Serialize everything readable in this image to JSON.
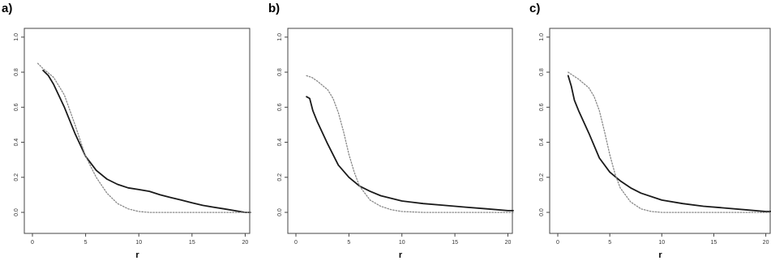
{
  "chart_data": [
    {
      "type": "line",
      "panel_label": "a)",
      "xlabel": "r",
      "ylabel": "",
      "xlim": [
        0,
        20.5
      ],
      "ylim": [
        -0.12,
        1.05
      ],
      "xticks": [
        "0",
        "5",
        "10",
        "15",
        "20"
      ],
      "yticks": [
        "0.0",
        "0.2",
        "0.4",
        "0.6",
        "0.8",
        "1.0"
      ],
      "grid": false,
      "series": [
        {
          "style": "solid",
          "color": "#1a1a1a",
          "x": [
            1,
            1.5,
            2,
            3,
            4,
            5,
            6,
            7,
            8,
            9,
            10,
            11,
            12,
            13,
            14,
            15,
            16,
            17,
            18,
            19,
            20,
            20.5
          ],
          "y": [
            0.81,
            0.78,
            0.73,
            0.6,
            0.45,
            0.32,
            0.24,
            0.19,
            0.16,
            0.14,
            0.13,
            0.12,
            0.1,
            0.085,
            0.07,
            0.055,
            0.04,
            0.03,
            0.02,
            0.01,
            0.0,
            0.0
          ]
        },
        {
          "style": "dotted",
          "color": "#888888",
          "x": [
            0.5,
            1,
            2,
            3,
            4,
            5,
            6,
            7,
            8,
            9,
            10,
            11,
            12,
            14,
            16,
            18,
            20,
            20.5
          ],
          "y": [
            0.85,
            0.82,
            0.77,
            0.67,
            0.5,
            0.32,
            0.2,
            0.11,
            0.05,
            0.02,
            0.005,
            0.0,
            0.0,
            0.0,
            0.0,
            0.0,
            0.0,
            0.0
          ]
        }
      ]
    },
    {
      "type": "line",
      "panel_label": "b)",
      "xlabel": "r",
      "ylabel": "",
      "xlim": [
        0,
        20.5
      ],
      "ylim": [
        -0.12,
        1.05
      ],
      "xticks": [
        "0",
        "5",
        "10",
        "15",
        "20"
      ],
      "yticks": [
        "0.0",
        "0.2",
        "0.4",
        "0.6",
        "0.8",
        "1.0"
      ],
      "grid": false,
      "series": [
        {
          "style": "solid",
          "color": "#1a1a1a",
          "x": [
            1,
            1.3,
            1.6,
            2,
            3,
            4,
            5,
            6,
            7,
            8,
            10,
            12,
            14,
            16,
            18,
            20,
            20.5
          ],
          "y": [
            0.66,
            0.65,
            0.58,
            0.52,
            0.39,
            0.27,
            0.2,
            0.15,
            0.12,
            0.095,
            0.065,
            0.05,
            0.04,
            0.03,
            0.02,
            0.01,
            0.01
          ]
        },
        {
          "style": "dotted",
          "color": "#888888",
          "x": [
            1,
            1.5,
            2,
            3,
            3.5,
            4,
            4.5,
            5,
            5.5,
            6,
            7,
            8,
            9,
            10,
            12,
            15,
            20,
            20.5
          ],
          "y": [
            0.78,
            0.77,
            0.75,
            0.7,
            0.65,
            0.57,
            0.46,
            0.33,
            0.23,
            0.15,
            0.07,
            0.035,
            0.015,
            0.005,
            0.0,
            0.0,
            0.0,
            0.0
          ]
        }
      ]
    },
    {
      "type": "line",
      "panel_label": "c)",
      "xlabel": "r",
      "ylabel": "",
      "xlim": [
        0,
        20.5
      ],
      "ylim": [
        -0.12,
        1.05
      ],
      "xticks": [
        "0",
        "5",
        "10",
        "15",
        "20"
      ],
      "yticks": [
        "0.0",
        "0.2",
        "0.4",
        "0.6",
        "0.8",
        "1.0"
      ],
      "grid": false,
      "series": [
        {
          "style": "solid",
          "color": "#1a1a1a",
          "x": [
            1,
            1.3,
            1.6,
            2,
            3,
            4,
            5,
            6,
            7,
            8,
            10,
            12,
            14,
            16,
            18,
            20,
            20.5
          ],
          "y": [
            0.78,
            0.72,
            0.64,
            0.58,
            0.45,
            0.31,
            0.23,
            0.18,
            0.14,
            0.11,
            0.07,
            0.05,
            0.035,
            0.025,
            0.015,
            0.005,
            0.005
          ]
        },
        {
          "style": "dotted",
          "color": "#888888",
          "x": [
            1,
            1.5,
            2,
            3,
            3.5,
            4,
            4.5,
            5,
            5.5,
            6,
            7,
            8,
            9,
            10,
            12,
            15,
            20,
            20.5
          ],
          "y": [
            0.8,
            0.78,
            0.76,
            0.71,
            0.66,
            0.58,
            0.46,
            0.33,
            0.22,
            0.14,
            0.06,
            0.02,
            0.005,
            0.0,
            0.0,
            0.0,
            0.0,
            0.0
          ]
        }
      ]
    }
  ]
}
